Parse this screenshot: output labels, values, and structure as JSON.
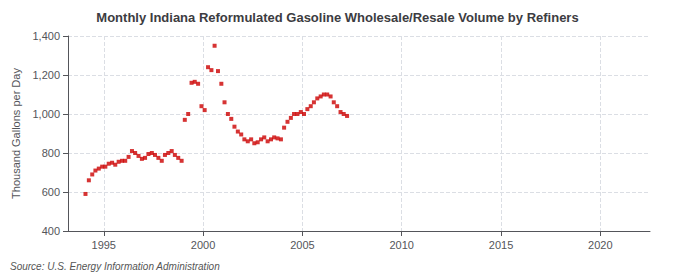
{
  "chart_data": {
    "type": "scatter",
    "title": "Monthly Indiana Reformulated Gasoline Wholesale/Resale Volume by Refiners",
    "ylabel": "Thousand Gallons per Day",
    "annotations": [
      "Source: U.S. Energy Information Administration"
    ],
    "color": "#cc0000",
    "marker": "square",
    "grid": true,
    "xlim": [
      1993.2,
      2022.5
    ],
    "xticks": [
      1995,
      2000,
      2005,
      2010,
      2015,
      2020
    ],
    "ylim": [
      400,
      1400
    ],
    "yticks": [
      400,
      600,
      800,
      {
        "value": 1000,
        "label": "1,000"
      },
      {
        "value": 1200,
        "label": "1,200"
      },
      {
        "value": 1400,
        "label": "1,400"
      }
    ],
    "x": [
      1994.08,
      1994.25,
      1994.42,
      1994.58,
      1994.75,
      1994.92,
      1995.08,
      1995.25,
      1995.42,
      1995.58,
      1995.75,
      1995.92,
      1996.08,
      1996.25,
      1996.42,
      1996.58,
      1996.75,
      1996.92,
      1997.08,
      1997.25,
      1997.42,
      1997.58,
      1997.75,
      1997.92,
      1998.08,
      1998.25,
      1998.42,
      1998.58,
      1998.75,
      1998.92,
      1999.08,
      1999.25,
      1999.42,
      1999.58,
      1999.75,
      1999.92,
      2000.08,
      2000.25,
      2000.42,
      2000.58,
      2000.75,
      2000.92,
      2001.08,
      2001.25,
      2001.42,
      2001.58,
      2001.75,
      2001.92,
      2002.08,
      2002.25,
      2002.42,
      2002.58,
      2002.75,
      2002.92,
      2003.08,
      2003.25,
      2003.42,
      2003.58,
      2003.75,
      2003.92,
      2004.08,
      2004.25,
      2004.42,
      2004.58,
      2004.75,
      2004.92,
      2005.08,
      2005.25,
      2005.42,
      2005.58,
      2005.75,
      2005.92,
      2006.08,
      2006.25,
      2006.42,
      2006.58,
      2006.75,
      2006.92,
      2007.08,
      2007.25
    ],
    "values": [
      590,
      660,
      690,
      710,
      720,
      730,
      730,
      745,
      750,
      740,
      755,
      760,
      760,
      780,
      810,
      800,
      785,
      770,
      775,
      795,
      800,
      790,
      775,
      760,
      790,
      800,
      810,
      790,
      775,
      760,
      970,
      1000,
      1160,
      1165,
      1155,
      1040,
      1020,
      1240,
      1225,
      1350,
      1220,
      1155,
      1060,
      1000,
      975,
      935,
      910,
      895,
      870,
      860,
      870,
      850,
      855,
      870,
      880,
      860,
      870,
      880,
      875,
      870,
      930,
      960,
      980,
      1000,
      1000,
      1010,
      1000,
      1025,
      1040,
      1060,
      1080,
      1090,
      1100,
      1100,
      1090,
      1060,
      1040,
      1010,
      1000,
      990
    ]
  }
}
